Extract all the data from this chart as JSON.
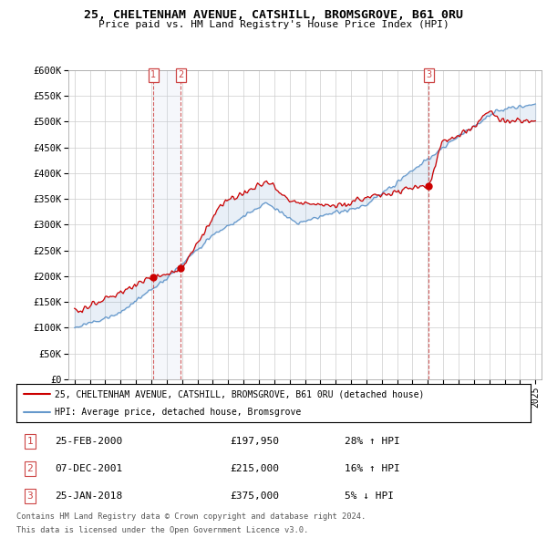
{
  "title": "25, CHELTENHAM AVENUE, CATSHILL, BROMSGROVE, B61 0RU",
  "subtitle": "Price paid vs. HM Land Registry's House Price Index (HPI)",
  "xlim_start": 1994.6,
  "xlim_end": 2025.4,
  "ylim": [
    0,
    600000
  ],
  "yticks": [
    0,
    50000,
    100000,
    150000,
    200000,
    250000,
    300000,
    350000,
    400000,
    450000,
    500000,
    550000,
    600000
  ],
  "ytick_labels": [
    "£0",
    "£50K",
    "£100K",
    "£150K",
    "£200K",
    "£250K",
    "£300K",
    "£350K",
    "£400K",
    "£450K",
    "£500K",
    "£550K",
    "£600K"
  ],
  "xticks": [
    1995,
    1996,
    1997,
    1998,
    1999,
    2000,
    2001,
    2002,
    2003,
    2004,
    2005,
    2006,
    2007,
    2008,
    2009,
    2010,
    2011,
    2012,
    2013,
    2014,
    2015,
    2016,
    2017,
    2018,
    2019,
    2020,
    2021,
    2022,
    2023,
    2024,
    2025
  ],
  "sale_dates": [
    2000.12,
    2001.92,
    2018.07
  ],
  "sale_prices": [
    197950,
    215000,
    375000
  ],
  "sale_labels": [
    "1",
    "2",
    "3"
  ],
  "legend_line1": "25, CHELTENHAM AVENUE, CATSHILL, BROMSGROVE, B61 0RU (detached house)",
  "legend_line2": "HPI: Average price, detached house, Bromsgrove",
  "table_rows": [
    {
      "num": "1",
      "date": "25-FEB-2000",
      "price": "£197,950",
      "change": "28% ↑ HPI"
    },
    {
      "num": "2",
      "date": "07-DEC-2001",
      "price": "£215,000",
      "change": "16% ↑ HPI"
    },
    {
      "num": "3",
      "date": "25-JAN-2018",
      "price": "£375,000",
      "change": "5% ↓ HPI"
    }
  ],
  "footnote1": "Contains HM Land Registry data © Crown copyright and database right 2024.",
  "footnote2": "This data is licensed under the Open Government Licence v3.0.",
  "line_color_red": "#cc0000",
  "line_color_blue": "#6699cc",
  "fill_color_blue": "#c8d8ee",
  "vline_color": "#cc4444",
  "bg_color": "#ffffff",
  "grid_color": "#cccccc"
}
